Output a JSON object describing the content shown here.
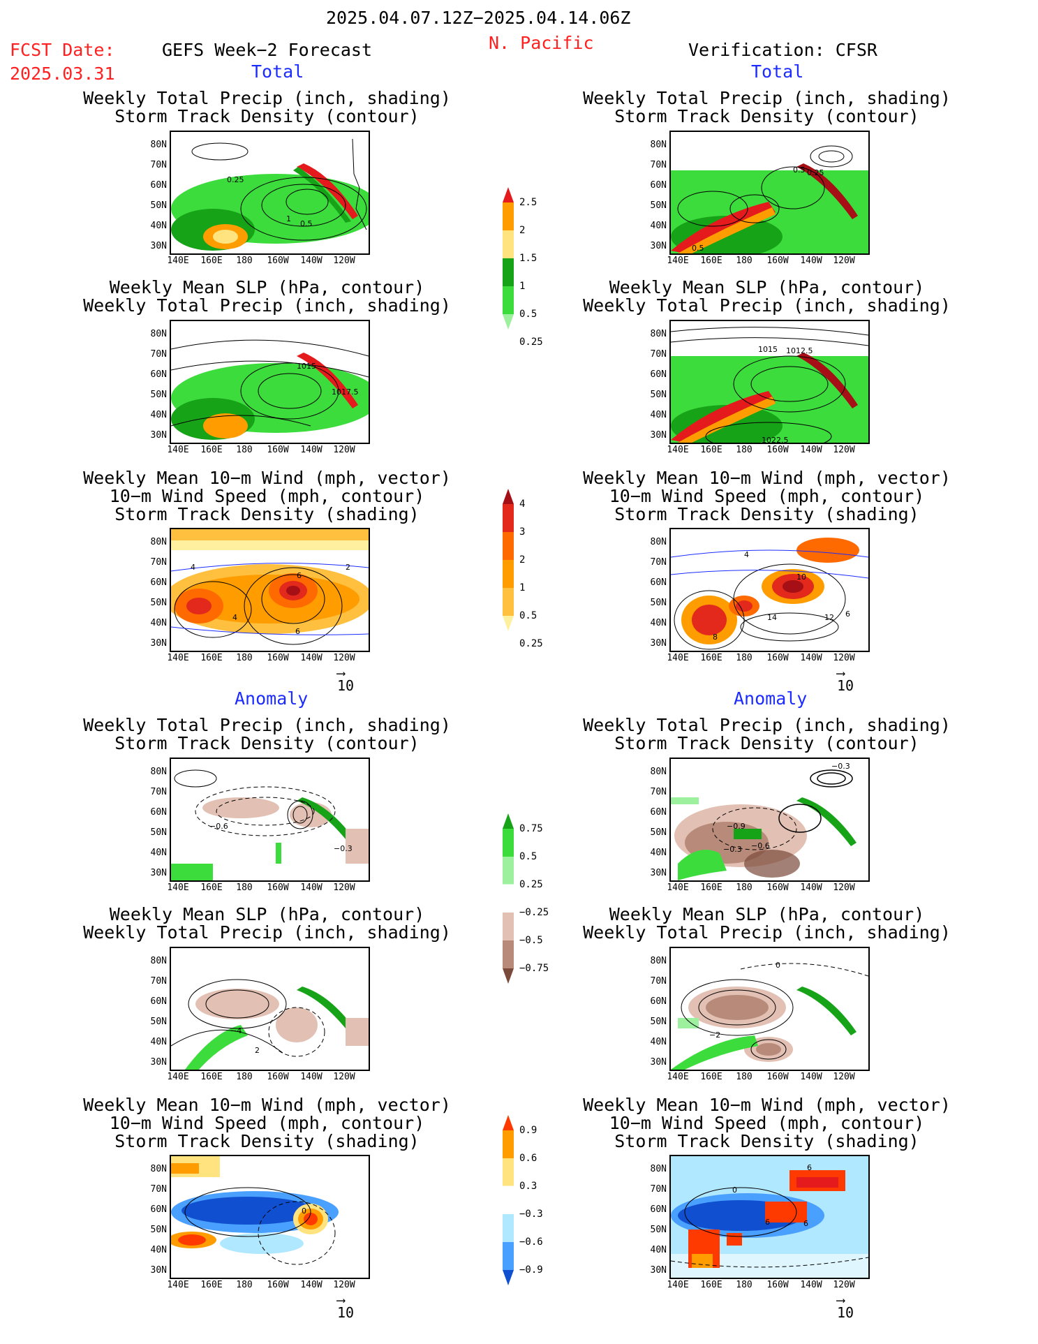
{
  "header": {
    "date_range": "2025.04.07.12Z−2025.04.14.06Z",
    "region": "N. Pacific",
    "fcst_label": "FCST Date:",
    "fcst_date": "2025.03.31",
    "left_heading": "GEFS Week−2 Forecast",
    "right_heading": "Verification: CFSR",
    "total_label": "Total",
    "anomaly_label": "Anomaly"
  },
  "panel_titles": {
    "precip_storm": [
      "Weekly Total Precip (inch, shading)",
      "Storm Track Density (contour)"
    ],
    "slp_precip": [
      "Weekly Mean SLP (hPa, contour)",
      "Weekly Total Precip (inch, shading)"
    ],
    "wind_storm": [
      "Weekly Mean 10−m Wind (mph, vector)",
      "10−m Wind Speed (mph, contour)",
      "Storm Track Density (shading)"
    ]
  },
  "axes": {
    "lat_ticks": [
      "80N",
      "70N",
      "60N",
      "50N",
      "40N",
      "30N"
    ],
    "lon_ticks": [
      "140E",
      "160E",
      "180",
      "160W",
      "140W",
      "120W"
    ]
  },
  "vector_ref": "10",
  "colorbars": {
    "precip_total": {
      "labels": [
        "2.5",
        "2",
        "1.5",
        "1",
        "0.5",
        "0.25"
      ],
      "colors": [
        "#e41a1c",
        "#ff9d00",
        "#ffe37f",
        "#17a317",
        "#3ddc3d",
        "#9df09d"
      ]
    },
    "storm_total": {
      "labels": [
        "4",
        "3",
        "2",
        "1",
        "0.5",
        "0.25"
      ],
      "colors": [
        "#a50f15",
        "#e3281c",
        "#ff6a00",
        "#ff9d00",
        "#ffc040",
        "#fff0a0"
      ]
    },
    "precip_anom": {
      "labels": [
        "0.75",
        "0.5",
        "0.25",
        "−0.25",
        "−0.5",
        "−0.75"
      ],
      "colors": [
        "#17a317",
        "#3ddc3d",
        "#9df09d",
        "#ffffff",
        "#e2c0b3",
        "#b88a7a",
        "#7a4a3a"
      ]
    },
    "storm_anom": {
      "labels": [
        "0.9",
        "0.6",
        "0.3",
        "−0.3",
        "−0.6",
        "−0.9"
      ],
      "colors": [
        "#ff3a00",
        "#ff9d00",
        "#ffe37f",
        "#ffffff",
        "#b0e8ff",
        "#4aa0ff",
        "#1050d0"
      ]
    }
  },
  "contour_labels": {
    "L_total_precip": [
      "0.25",
      "1",
      "0.5"
    ],
    "R_total_precip": [
      "0.5",
      "0.25",
      "0.5"
    ],
    "L_total_slp": [
      "1015",
      "1017.5"
    ],
    "R_total_slp": [
      "1015",
      "1012.5",
      "1022.5"
    ],
    "L_total_wind": [
      "4",
      "6",
      "2",
      "4",
      "6"
    ],
    "R_total_wind": [
      "4",
      "10",
      "14",
      "12",
      "6",
      "8"
    ],
    "L_anom_precip": [
      "−0.6",
      "−0.3"
    ],
    "R_anom_precip": [
      "−0.3",
      "−0.9",
      "−0.3",
      "−0.6"
    ],
    "L_anom_slp": [
      "−4",
      "2"
    ],
    "R_anom_slp": [
      "0",
      "−2"
    ],
    "L_anom_wind": [
      "0"
    ],
    "R_anom_wind": [
      "6",
      "0",
      "6",
      "6"
    ]
  }
}
